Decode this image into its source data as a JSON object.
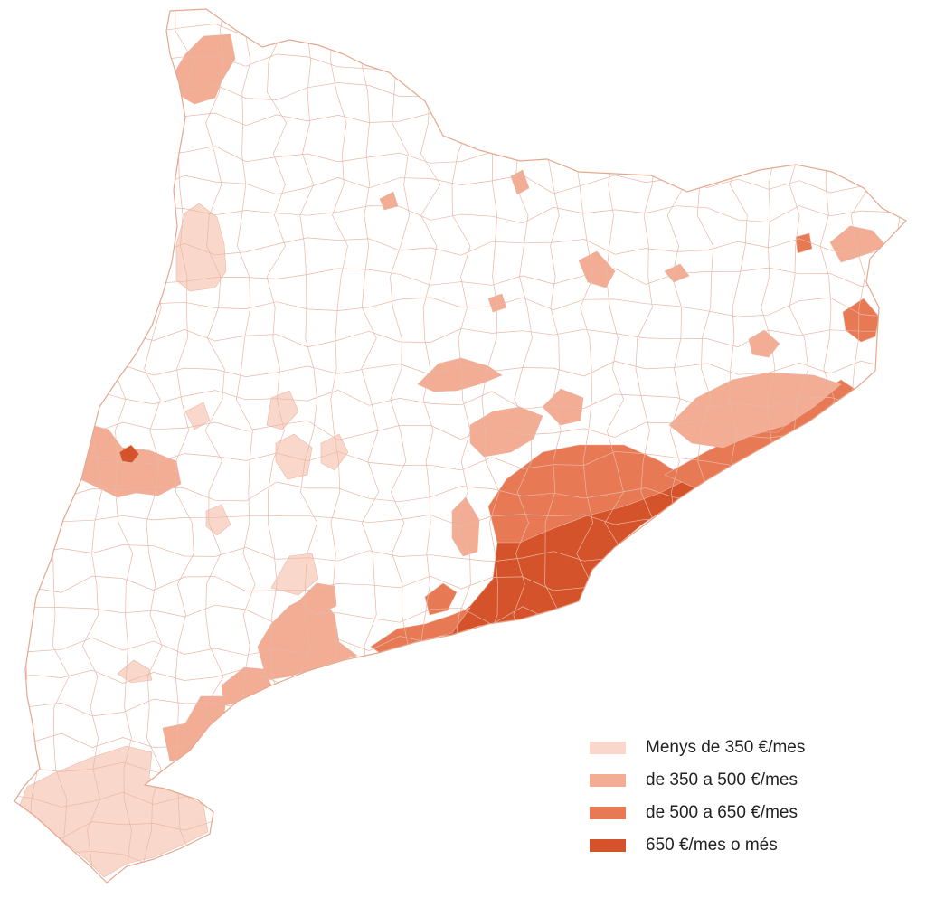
{
  "map": {
    "colors": {
      "background": "#ffffff",
      "no_data_fill": "#ffffff",
      "border": "#e9b7a5",
      "outline": "#e6a78e"
    }
  },
  "legend": {
    "items": [
      {
        "label": "Menys de 350 €/mes",
        "color": "#f9d8cb"
      },
      {
        "label": "de 350 a 500 €/mes",
        "color": "#f2ad94"
      },
      {
        "label": "de 500 a 650 €/mes",
        "color": "#e77a55"
      },
      {
        "label": "650 €/mes o més",
        "color": "#d4532a"
      }
    ]
  }
}
